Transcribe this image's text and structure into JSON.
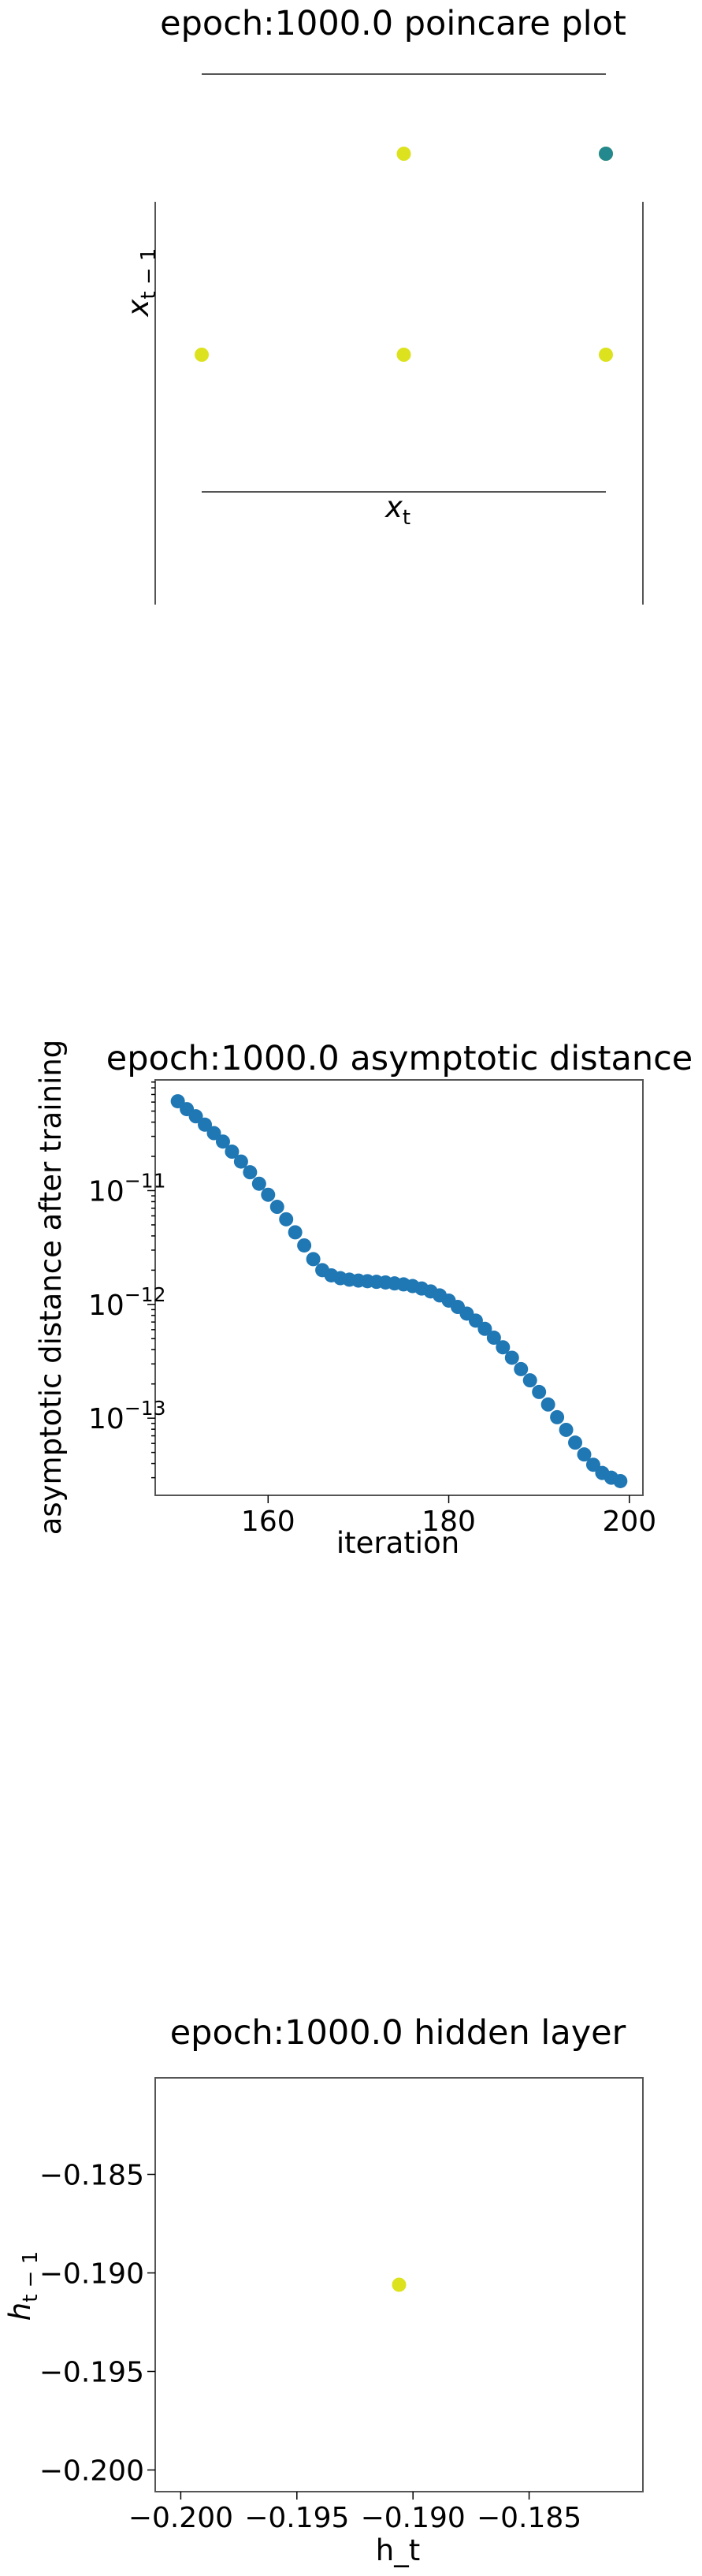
{
  "chart_data": [
    {
      "type": "scatter",
      "title": "epoch:1000.0 poincare plot",
      "xlabel": "x_t",
      "ylabel": "x_{t-1}",
      "grid": false,
      "colors": {
        "yellow": "#dde21f",
        "teal": "#23898e"
      },
      "points": [
        {
          "x": 1,
          "y": 2,
          "color": "#dde21f"
        },
        {
          "x": 2,
          "y": 2,
          "color": "#dde21f"
        },
        {
          "x": 2,
          "y": 1,
          "color": "#dde21f"
        },
        {
          "x": 0,
          "y": 1,
          "color": "#dde21f"
        },
        {
          "x": 1,
          "y": 1,
          "color": "#dde21f"
        },
        {
          "x": 2,
          "y": 2,
          "color": "#23898e"
        }
      ]
    },
    {
      "type": "scatter",
      "title": "epoch:1000.0 asymptotic distance",
      "xlabel": "iteration",
      "ylabel": "asymptotic distance after training",
      "yscale": "log",
      "xlim": [
        147.5,
        201.5
      ],
      "ylim": [
        2.1e-14,
        9.4e-11
      ],
      "xticks": [
        160,
        180,
        200
      ],
      "yticks": [
        {
          "value": 1e-11,
          "base": "10",
          "exp": "−11"
        },
        {
          "value": 1e-12,
          "base": "10",
          "exp": "−12"
        },
        {
          "value": 1e-13,
          "base": "10",
          "exp": "−13"
        }
      ],
      "grid": false,
      "color": "#1f77b4",
      "x": [
        150,
        151,
        152,
        153,
        154,
        155,
        156,
        157,
        158,
        159,
        160,
        161,
        162,
        163,
        164,
        165,
        166,
        167,
        168,
        169,
        170,
        171,
        172,
        173,
        174,
        175,
        176,
        177,
        178,
        179,
        180,
        181,
        182,
        183,
        184,
        185,
        186,
        187,
        188,
        189,
        190,
        191,
        192,
        193,
        194,
        195,
        196,
        197,
        198,
        199
      ],
      "y": [
        6.1e-11,
        5.2e-11,
        4.5e-11,
        3.8e-11,
        3.2e-11,
        2.7e-11,
        2.2e-11,
        1.8e-11,
        1.45e-11,
        1.15e-11,
        9.2e-12,
        7.2e-12,
        5.6e-12,
        4.3e-12,
        3.3e-12,
        2.5e-12,
        2e-12,
        1.8e-12,
        1.7e-12,
        1.65e-12,
        1.62e-12,
        1.6e-12,
        1.58e-12,
        1.56e-12,
        1.53e-12,
        1.5e-12,
        1.45e-12,
        1.38e-12,
        1.3e-12,
        1.2e-12,
        1.08e-12,
        9.5e-13,
        8.3e-13,
        7.2e-13,
        6.1e-13,
        5.1e-13,
        4.2e-13,
        3.4e-13,
        2.7e-13,
        2.15e-13,
        1.7e-13,
        1.32e-13,
        1.02e-13,
        7.9e-14,
        6.1e-14,
        4.8e-14,
        3.9e-14,
        3.3e-14,
        3e-14,
        2.8e-14
      ]
    },
    {
      "type": "scatter",
      "title": "epoch:1000.0 hidden layer",
      "xlabel": "h_t",
      "ylabel": "h_{t-1}",
      "xlim": [
        -0.2011,
        -0.1801
      ],
      "ylim": [
        -0.2011,
        -0.1801
      ],
      "xticks": [
        {
          "value": -0.2,
          "label": "−0.200"
        },
        {
          "value": -0.195,
          "label": "−0.195"
        },
        {
          "value": -0.19,
          "label": "−0.190"
        },
        {
          "value": -0.185,
          "label": "−0.185"
        }
      ],
      "yticks": [
        {
          "value": -0.185,
          "label": "−0.185"
        },
        {
          "value": -0.19,
          "label": "−0.190"
        },
        {
          "value": -0.195,
          "label": "−0.195"
        },
        {
          "value": -0.2,
          "label": "−0.200"
        }
      ],
      "grid": false,
      "color": "#dde21f",
      "points": [
        {
          "x": -0.1906,
          "y": -0.1906
        }
      ]
    }
  ]
}
